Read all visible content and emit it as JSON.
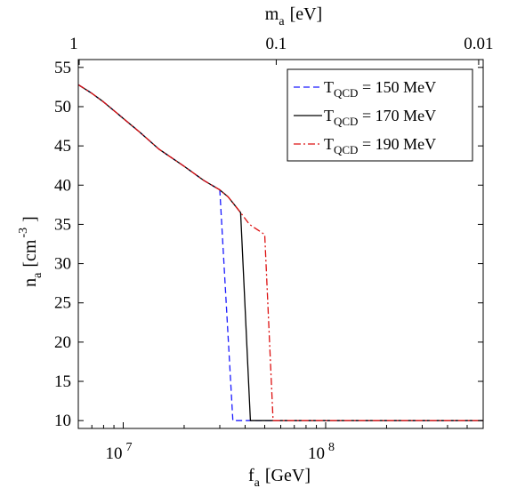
{
  "chart_data": {
    "type": "line",
    "xscale": "log",
    "xlim": [
      6000000,
      600000000
    ],
    "ylim": [
      9,
      56
    ],
    "grid": false,
    "legend_position": "top-right",
    "xlabel": {
      "main": "f",
      "sub": "a",
      "rest": "[GeV]"
    },
    "ylabel": {
      "main": "n",
      "sub": "a",
      "rest": "[cm",
      "sup": "-3",
      "close": "]"
    },
    "top_xlabel": {
      "main": "m",
      "sub": "a",
      "rest": "[eV]"
    },
    "x_ticks": [
      {
        "value": 10000000,
        "base": "10",
        "exp": "7"
      },
      {
        "value": 100000000,
        "base": "10",
        "exp": "8"
      }
    ],
    "y_ticks": [
      10,
      15,
      20,
      25,
      30,
      35,
      40,
      45,
      50,
      55
    ],
    "top_ticks": [
      {
        "x": 5700000,
        "label": "1"
      },
      {
        "x": 57000000,
        "label": "0.1"
      },
      {
        "x": 570000000,
        "label": "0.01"
      }
    ],
    "series": [
      {
        "legend": {
          "prefix": "T",
          "sub": "QCD",
          "rest": " = 150 MeV"
        },
        "color": "#1a1aff",
        "dash": "7,4",
        "points": [
          [
            6000000,
            52.8
          ],
          [
            7000000,
            51.7
          ],
          [
            8000000,
            50.6
          ],
          [
            10000000,
            48.5
          ],
          [
            12000000,
            46.8
          ],
          [
            15000000,
            44.6
          ],
          [
            20000000,
            42.4
          ],
          [
            25000000,
            40.6
          ],
          [
            30000000,
            39.4
          ],
          [
            34800000,
            10.0
          ],
          [
            600000000,
            10.0
          ]
        ]
      },
      {
        "legend": {
          "prefix": "T",
          "sub": "QCD",
          "rest": " = 170 MeV"
        },
        "color": "#000000",
        "dash": "",
        "points": [
          [
            6000000,
            52.8
          ],
          [
            7000000,
            51.7
          ],
          [
            8000000,
            50.6
          ],
          [
            10000000,
            48.5
          ],
          [
            12000000,
            46.8
          ],
          [
            15000000,
            44.6
          ],
          [
            20000000,
            42.4
          ],
          [
            25000000,
            40.6
          ],
          [
            30000000,
            39.4
          ],
          [
            33000000,
            38.5
          ],
          [
            38000000,
            36.5
          ],
          [
            42500000,
            10.0
          ],
          [
            600000000,
            10.0
          ]
        ]
      },
      {
        "legend": {
          "prefix": "T",
          "sub": "QCD",
          "rest": " = 190 MeV"
        },
        "color": "#dd1111",
        "dash": "8,3,2,3",
        "points": [
          [
            6000000,
            52.8
          ],
          [
            7000000,
            51.7
          ],
          [
            8000000,
            50.6
          ],
          [
            10000000,
            48.5
          ],
          [
            12000000,
            46.8
          ],
          [
            15000000,
            44.6
          ],
          [
            20000000,
            42.4
          ],
          [
            25000000,
            40.6
          ],
          [
            30000000,
            39.4
          ],
          [
            33000000,
            38.5
          ],
          [
            38000000,
            36.5
          ],
          [
            42000000,
            35.0
          ],
          [
            50000000,
            33.7
          ],
          [
            55000000,
            10.0
          ],
          [
            600000000,
            10.0
          ]
        ]
      }
    ]
  }
}
